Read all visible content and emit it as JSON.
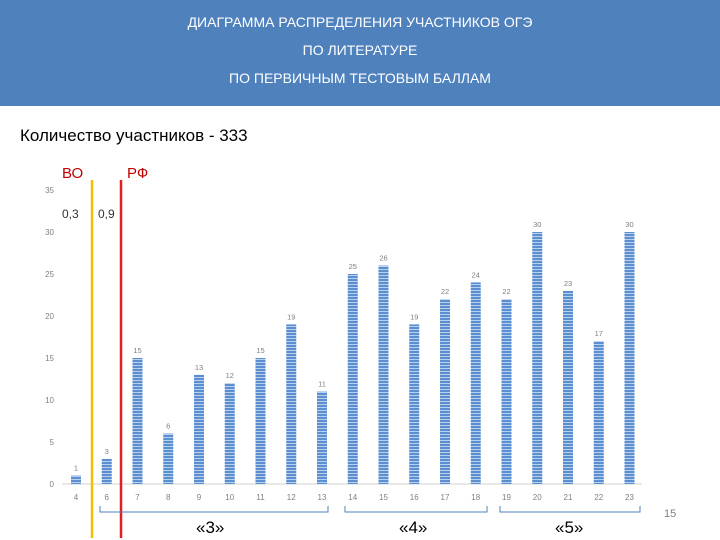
{
  "header": {
    "line1": "ДИАГРАММА РАСПРЕДЕЛЕНИЯ УЧАСТНИКОВ ОГЭ",
    "line2": "ПО ЛИТЕРАТУРЕ",
    "line3": "ПО ПЕРВИЧНЫМ ТЕСТОВЫМ БАЛЛАМ"
  },
  "subtitle": "Количество участников - 333",
  "page_number": "15",
  "colors": {
    "header_bg": "#4f81bd",
    "bar": "#5b8fd0",
    "vo_line": "#f0c000",
    "rf_line": "#e02020",
    "label_red": "#c00000"
  },
  "chart_data": {
    "type": "bar",
    "categories": [
      "4",
      "6",
      "7",
      "8",
      "9",
      "10",
      "11",
      "12",
      "13",
      "14",
      "15",
      "16",
      "17",
      "18",
      "19",
      "20",
      "21",
      "22",
      "23"
    ],
    "values": [
      1,
      3,
      15,
      6,
      13,
      12,
      15,
      19,
      11,
      25,
      26,
      19,
      22,
      24,
      22,
      30,
      23,
      17,
      30
    ],
    "ylim": [
      0,
      35
    ],
    "yticks": [
      0,
      5,
      10,
      15,
      20,
      25,
      30,
      35
    ],
    "grid": false,
    "threshold_lines": [
      {
        "label": "ВО",
        "value_label": "0,3"
      },
      {
        "label": "РФ",
        "value_label": "0,9"
      }
    ],
    "grade_groups": [
      {
        "label": "«3»"
      },
      {
        "label": "«4»"
      },
      {
        "label": "«5»"
      }
    ]
  }
}
